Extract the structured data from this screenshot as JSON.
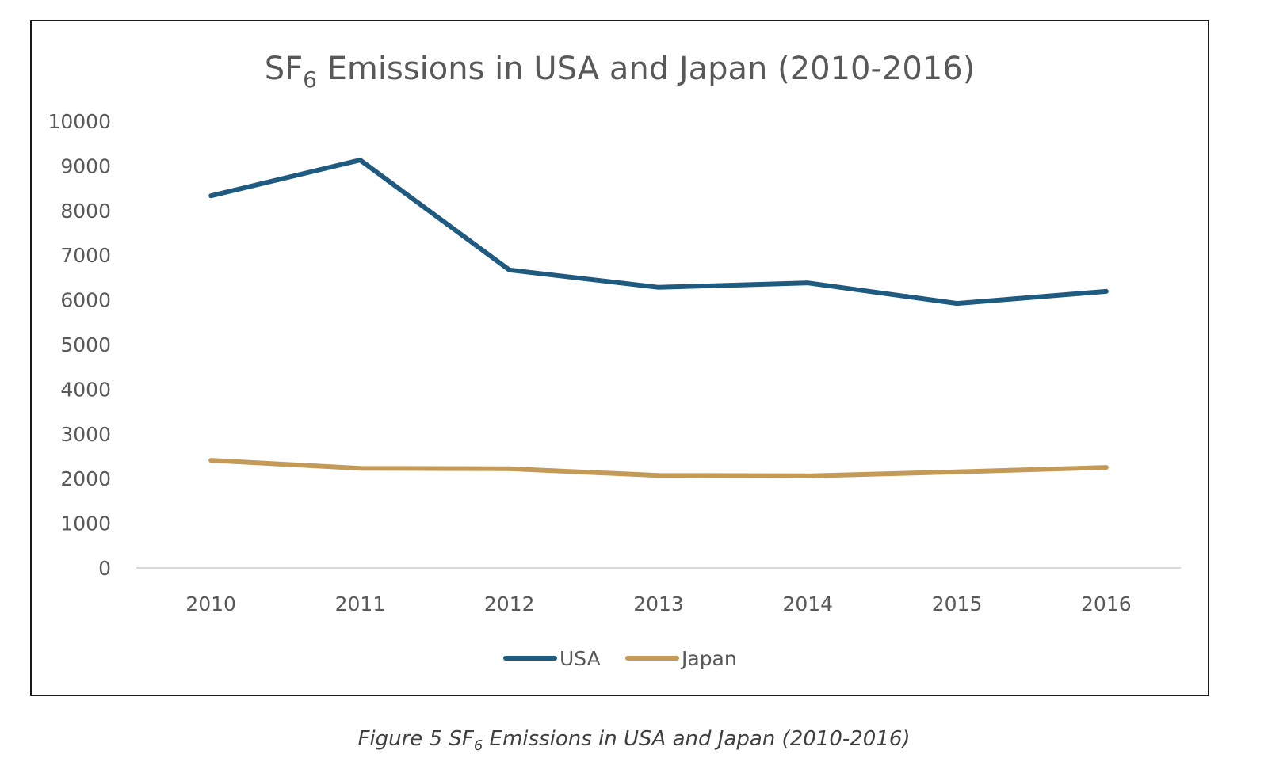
{
  "chart_data": {
    "type": "line",
    "title_main": "SF",
    "title_subscript": "6",
    "title_rest": " Emissions in USA and Japan (2010-2016)",
    "categories": [
      "2010",
      "2011",
      "2012",
      "2013",
      "2014",
      "2015",
      "2016"
    ],
    "y_ticks": [
      "0",
      "1000",
      "2000",
      "3000",
      "4000",
      "5000",
      "6000",
      "7000",
      "8000",
      "9000",
      "10000"
    ],
    "ylim": [
      0,
      10000
    ],
    "xlabel": "",
    "ylabel": "",
    "grid": false,
    "legend_position": "bottom",
    "series": [
      {
        "name": "USA",
        "color": "#1f5a80",
        "values": [
          8330,
          9130,
          6670,
          6280,
          6380,
          5920,
          6190
        ]
      },
      {
        "name": "Japan",
        "color": "#c49a58",
        "values": [
          2410,
          2230,
          2220,
          2070,
          2060,
          2150,
          2250
        ]
      }
    ]
  },
  "caption": {
    "prefix": "Figure 5 SF",
    "subscript": "6",
    "rest": " Emissions in USA and Japan (2010-2016)"
  }
}
